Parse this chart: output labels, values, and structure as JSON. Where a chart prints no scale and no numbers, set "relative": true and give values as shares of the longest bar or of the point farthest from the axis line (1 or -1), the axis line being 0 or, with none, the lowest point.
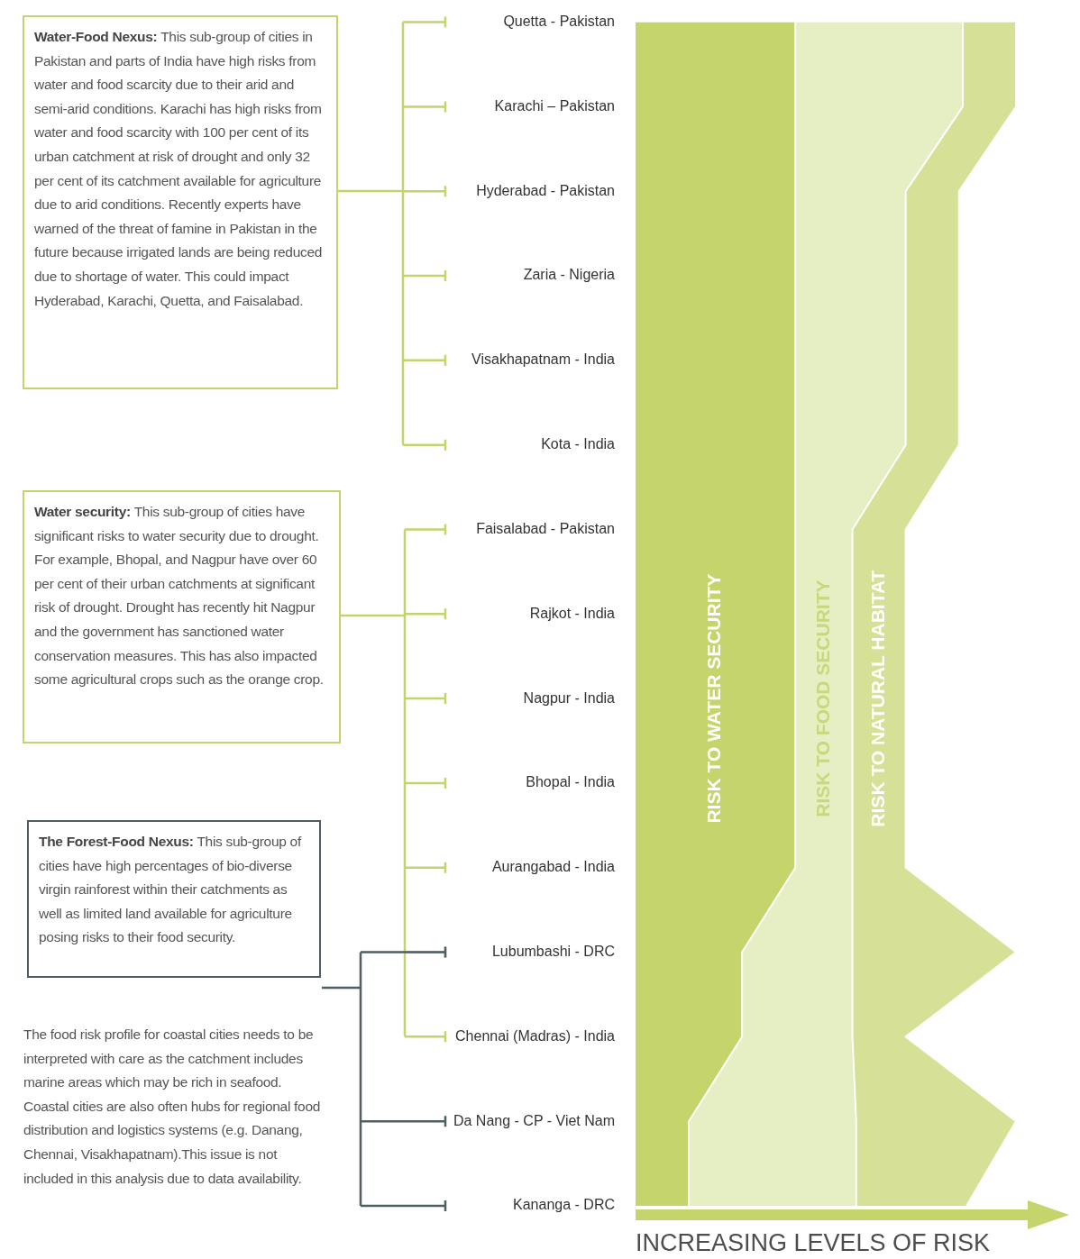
{
  "chart_data": {
    "type": "area",
    "orientation": "horizontal",
    "stacked": true,
    "relative": true,
    "xlabel": "INCREASING LEVELS OF RISK",
    "legend": false,
    "grid": false,
    "categories": [
      "Quetta - Pakistan",
      "Karachi – Pakistan",
      "Hyderabad - Pakistan",
      "Zaria - Nigeria",
      "Visakhapatnam - India",
      "Kota - India",
      "Faisalabad - Pakistan",
      "Rajkot - India",
      "Nagpur - India",
      "Bhopal - India",
      "Aurangabad - India",
      "Lubumbashi - DRC",
      "Chennai (Madras) - India",
      "Da Nang - CP - Viet Nam",
      "Kananga - DRC"
    ],
    "series": [
      {
        "name": "RISK TO WATER SECURITY",
        "color": "#c5d46b",
        "values": [
          0.42,
          0.42,
          0.42,
          0.42,
          0.42,
          0.42,
          0.42,
          0.42,
          0.42,
          0.42,
          0.42,
          0.28,
          0.28,
          0.14,
          0.14
        ]
      },
      {
        "name": "RISK TO FOOD SECURITY",
        "color": "#e6eec4",
        "values": [
          0.44,
          0.44,
          0.29,
          0.29,
          0.29,
          0.29,
          0.15,
          0.15,
          0.15,
          0.15,
          0.15,
          0.29,
          0.29,
          0.44,
          0.44
        ]
      },
      {
        "name": "RISK TO NATURAL HABITAT",
        "color": "#d6e096",
        "values": [
          0.14,
          0.14,
          0.14,
          0.14,
          0.14,
          0.14,
          0.14,
          0.14,
          0.14,
          0.14,
          0.14,
          0.43,
          0.14,
          0.42,
          0.29
        ]
      }
    ],
    "annotations": [
      "Water-Food Nexus: This sub-group of cities in Pakistan and parts of India have high risks from water and food scarcity due to their arid and semi-arid conditions. Karachi has high risks from water and food scarcity with 100 per cent of its urban catchment at risk of drought and only 32 per cent of its catchment available for agriculture due to arid conditions. Recently experts have warned of the threat of famine in Pakistan in the future because irrigated lands are being reduced due to shortage of water. This could impact Hyderabad, Karachi, Quetta, and Faisalabad.",
      "Water security: This sub-group of cities have significant risks to water security due to drought. For example, Bhopal, and Nagpur have over 60 per cent of their urban catchments at significant risk of drought. Drought has recently hit Nagpur and the government has sanctioned water conservation measures. This has also impacted some agricultural crops such as the orange crop.",
      "The Forest-Food Nexus: This sub-group of cities have high percentages of bio-diverse virgin rainforest within their catchments as well as limited land available for agriculture posing risks to their food security.",
      "The food risk profile for coastal cities needs to be interpreted with care as the catchment includes marine areas which may be rich in seafood. Coastal cities are also often hubs for regional food distribution and logistics systems (e.g. Danang, Chennai, Visakhapatnam).This issue is not included in this analysis due to data availability."
    ]
  }
}
